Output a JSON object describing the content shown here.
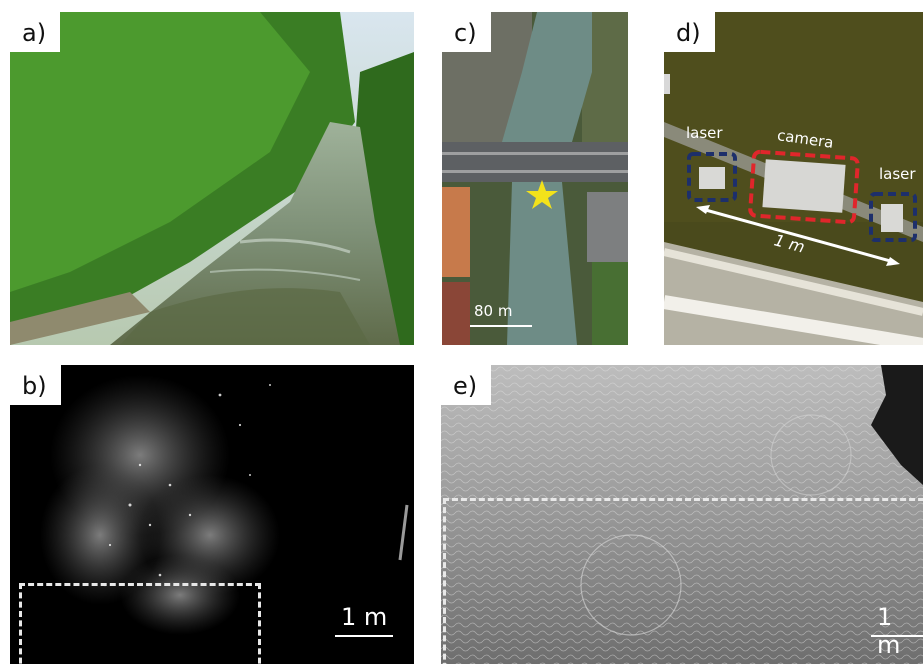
{
  "panels": {
    "a": {
      "label": "a)"
    },
    "b": {
      "label": "b)",
      "scale_label": "1 m"
    },
    "c": {
      "label": "c)",
      "scale_label": "80 m"
    },
    "d": {
      "label": "d)",
      "laser_left": "laser",
      "camera": "camera",
      "laser_right": "laser",
      "distance": "1 m"
    },
    "e": {
      "label": "e)",
      "scale_label": "1 m"
    }
  },
  "colors": {
    "vegetation": "#3f8a2a",
    "water": "#6f8a78",
    "star": "#f3e21a",
    "camera_box": "#e0262b",
    "laser_box": "#1d2f6b"
  }
}
